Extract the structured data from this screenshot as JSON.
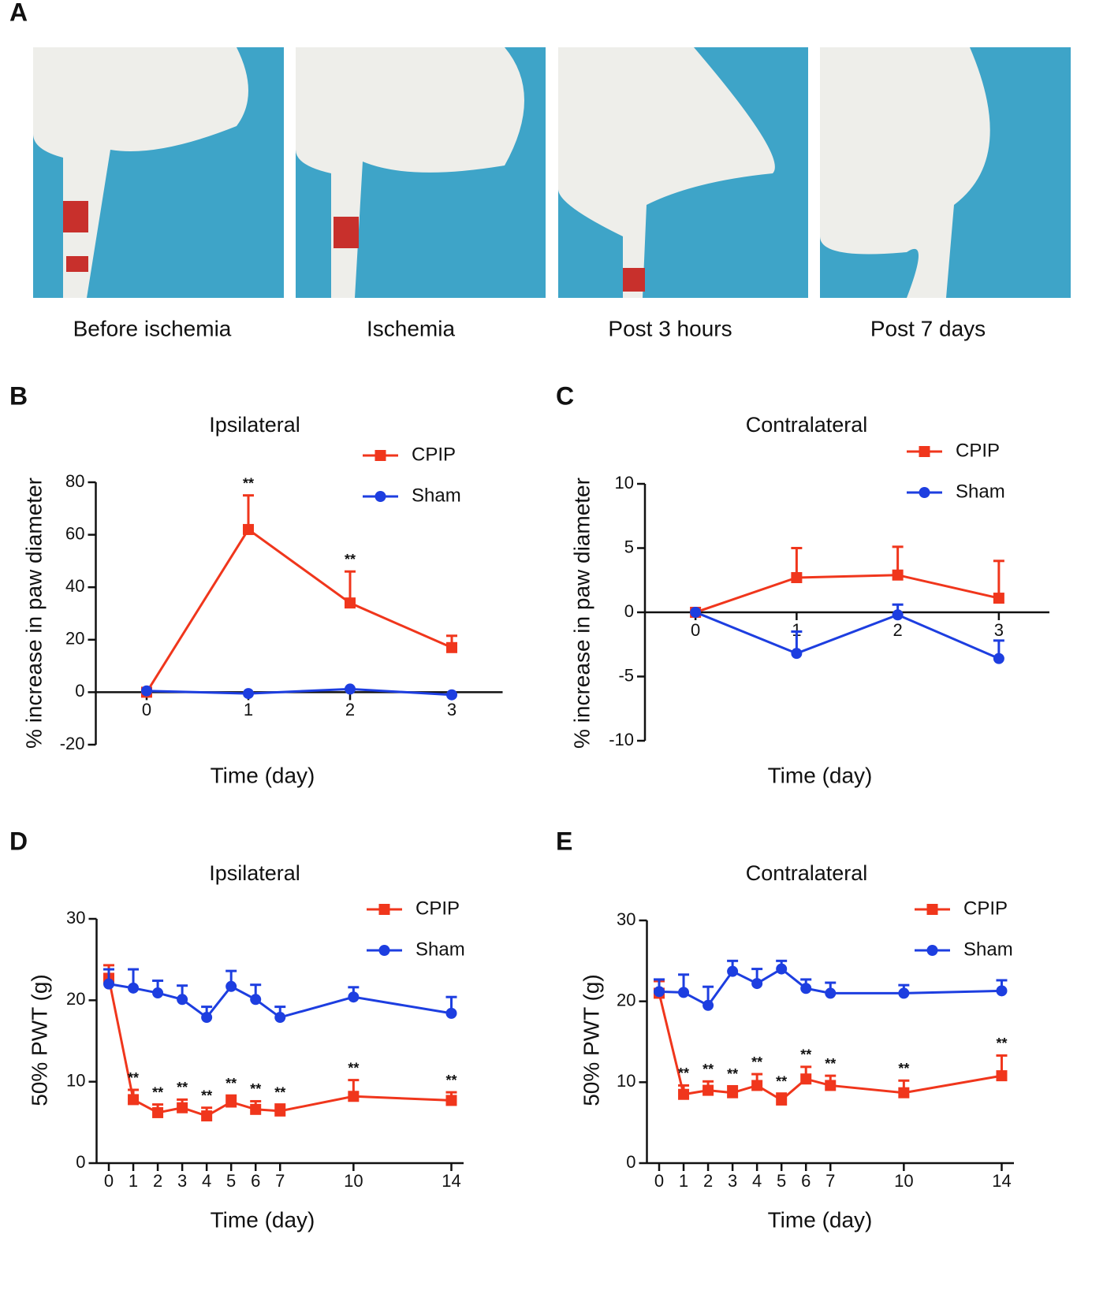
{
  "panel_a": {
    "label": "A",
    "captions": [
      "Before ischemia",
      "Ischemia",
      "Post 3 hours",
      "Post 7 days"
    ]
  },
  "chart_data": [
    {
      "panel": "B",
      "type": "line",
      "title": "Ipsilateral",
      "x_label": "Time (day)",
      "y_label": "% increase in paw diameter",
      "x": [
        0,
        1,
        2,
        3
      ],
      "xlim": [
        -0.5,
        3.5
      ],
      "ylim": [
        -20,
        80
      ],
      "xticks": [
        0,
        1,
        2,
        3
      ],
      "yticks": [
        -20,
        0,
        20,
        40,
        60,
        80
      ],
      "series": [
        {
          "name": "CPIP",
          "color": "#f0361c",
          "marker": "square",
          "values": [
            0,
            62,
            34,
            17
          ],
          "errors": [
            0,
            13,
            12,
            4.5
          ]
        },
        {
          "name": "Sham",
          "color": "#1d3ee0",
          "marker": "circle",
          "values": [
            0.5,
            -0.5,
            1.2,
            -1
          ],
          "errors": [
            0,
            0,
            0,
            0
          ]
        }
      ],
      "annotations": [
        {
          "text": "**",
          "x": 1
        },
        {
          "text": "**",
          "x": 2
        }
      ]
    },
    {
      "panel": "C",
      "type": "line",
      "title": "Contralateral",
      "x_label": "Time (day)",
      "y_label": "% increase in paw diameter",
      "x": [
        0,
        1,
        2,
        3
      ],
      "xlim": [
        -0.5,
        3.5
      ],
      "ylim": [
        -10,
        10
      ],
      "xticks": [
        0,
        1,
        2,
        3
      ],
      "yticks": [
        -10,
        -5,
        0,
        5,
        10
      ],
      "series": [
        {
          "name": "CPIP",
          "color": "#f0361c",
          "marker": "square",
          "values": [
            0,
            2.7,
            2.9,
            1.1
          ],
          "errors": [
            0,
            2.3,
            2.2,
            2.9
          ]
        },
        {
          "name": "Sham",
          "color": "#1d3ee0",
          "marker": "circle",
          "values": [
            0,
            -3.2,
            -0.2,
            -3.6
          ],
          "errors": [
            0,
            1.7,
            0.8,
            1.4
          ]
        }
      ],
      "annotations": []
    },
    {
      "panel": "D",
      "type": "line",
      "title": "Ipsilateral",
      "x_label": "Time (day)",
      "y_label": "50% PWT (g)",
      "x": [
        0,
        1,
        2,
        3,
        4,
        5,
        6,
        7,
        10,
        14
      ],
      "xlim": [
        -0.5,
        14.5
      ],
      "ylim": [
        0,
        30
      ],
      "xticks": [
        0,
        1,
        2,
        3,
        4,
        5,
        6,
        7,
        10,
        14
      ],
      "yticks": [
        0,
        10,
        20,
        30
      ],
      "series": [
        {
          "name": "CPIP",
          "color": "#f0361c",
          "marker": "square",
          "values": [
            22.7,
            7.8,
            6.2,
            6.8,
            5.8,
            7.5,
            6.6,
            6.4,
            8.2,
            7.7
          ],
          "errors": [
            1.6,
            1.2,
            1,
            1,
            1,
            0.8,
            1,
            0.8,
            2,
            1
          ]
        },
        {
          "name": "Sham",
          "color": "#1d3ee0",
          "marker": "circle",
          "values": [
            22,
            21.5,
            20.9,
            20.1,
            17.9,
            21.7,
            20.1,
            17.9,
            20.4,
            18.4
          ],
          "errors": [
            1.8,
            2.3,
            1.5,
            1.7,
            1.3,
            1.9,
            1.8,
            1.3,
            1.2,
            2
          ]
        }
      ],
      "annotations": [
        {
          "text": "**",
          "x": 1
        },
        {
          "text": "**",
          "x": 2
        },
        {
          "text": "**",
          "x": 3
        },
        {
          "text": "**",
          "x": 4
        },
        {
          "text": "**",
          "x": 5
        },
        {
          "text": "**",
          "x": 6
        },
        {
          "text": "**",
          "x": 7
        },
        {
          "text": "**",
          "x": 10
        },
        {
          "text": "**",
          "x": 14
        }
      ]
    },
    {
      "panel": "E",
      "type": "line",
      "title": "Contralateral",
      "x_label": "Time (day)",
      "y_label": "50% PWT (g)",
      "x": [
        0,
        1,
        2,
        3,
        4,
        5,
        6,
        7,
        10,
        14
      ],
      "xlim": [
        -0.5,
        14.5
      ],
      "ylim": [
        0,
        30
      ],
      "xticks": [
        0,
        1,
        2,
        3,
        4,
        5,
        6,
        7,
        10,
        14
      ],
      "yticks": [
        0,
        10,
        20,
        30
      ],
      "series": [
        {
          "name": "CPIP",
          "color": "#f0361c",
          "marker": "square",
          "values": [
            21,
            8.5,
            9,
            8.7,
            9.6,
            7.8,
            10.4,
            9.6,
            8.7,
            10.8
          ],
          "errors": [
            1.5,
            1.1,
            1.1,
            0.8,
            1.4,
            0.8,
            1.5,
            1.2,
            1.5,
            2.5
          ]
        },
        {
          "name": "Sham",
          "color": "#1d3ee0",
          "marker": "circle",
          "values": [
            21.2,
            21.1,
            19.5,
            23.7,
            22.2,
            24,
            21.6,
            21,
            21,
            21.3
          ],
          "errors": [
            1.5,
            2.2,
            2.3,
            1.3,
            1.8,
            1,
            1.1,
            1.3,
            1,
            1.3
          ]
        }
      ],
      "annotations": [
        {
          "text": "**",
          "x": 1
        },
        {
          "text": "**",
          "x": 2
        },
        {
          "text": "**",
          "x": 3
        },
        {
          "text": "**",
          "x": 4
        },
        {
          "text": "**",
          "x": 5
        },
        {
          "text": "**",
          "x": 6
        },
        {
          "text": "**",
          "x": 7
        },
        {
          "text": "**",
          "x": 10
        },
        {
          "text": "**",
          "x": 14
        }
      ]
    }
  ]
}
